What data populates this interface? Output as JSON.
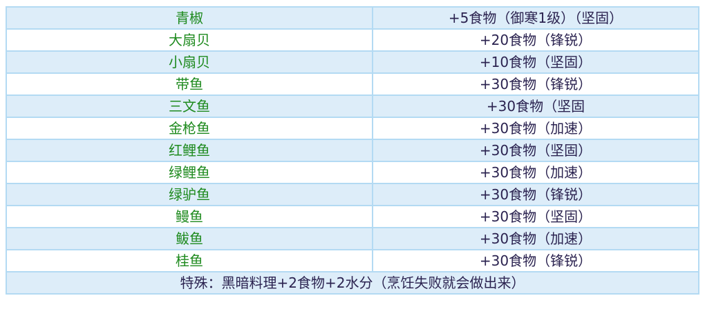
{
  "table": {
    "rows": [
      {
        "name": "青椒",
        "effect": "+5食物（御寒1级）（坚固）"
      },
      {
        "name": "大扇贝",
        "effect": "+20食物（锋锐）"
      },
      {
        "name": "小扇贝",
        "effect": "+10食物（坚固）"
      },
      {
        "name": "带鱼",
        "effect": "+30食物（锋锐）"
      },
      {
        "name": "三文鱼",
        "effect": "+30食物（坚固"
      },
      {
        "name": "金枪鱼",
        "effect": "+30食物（加速）"
      },
      {
        "name": "红鲤鱼",
        "effect": "+30食物（坚固）"
      },
      {
        "name": "绿鲤鱼",
        "effect": "+30食物（加速）"
      },
      {
        "name": "绿驴鱼",
        "effect": "+30食物（锋锐）"
      },
      {
        "name": "鳗鱼",
        "effect": "+30食物（坚固）"
      },
      {
        "name": "鲅鱼",
        "effect": "+30食物（加速）"
      },
      {
        "name": "桂鱼",
        "effect": "+30食物（锋锐）"
      }
    ],
    "footer": "特殊：黑暗料理+2食物+2水分（烹饪失败就会做出来）"
  },
  "colors": {
    "name_text": "#1e8a1e",
    "effect_text": "#2b2350",
    "alt_row": "#ddedf9",
    "border": "#b3daf3"
  }
}
